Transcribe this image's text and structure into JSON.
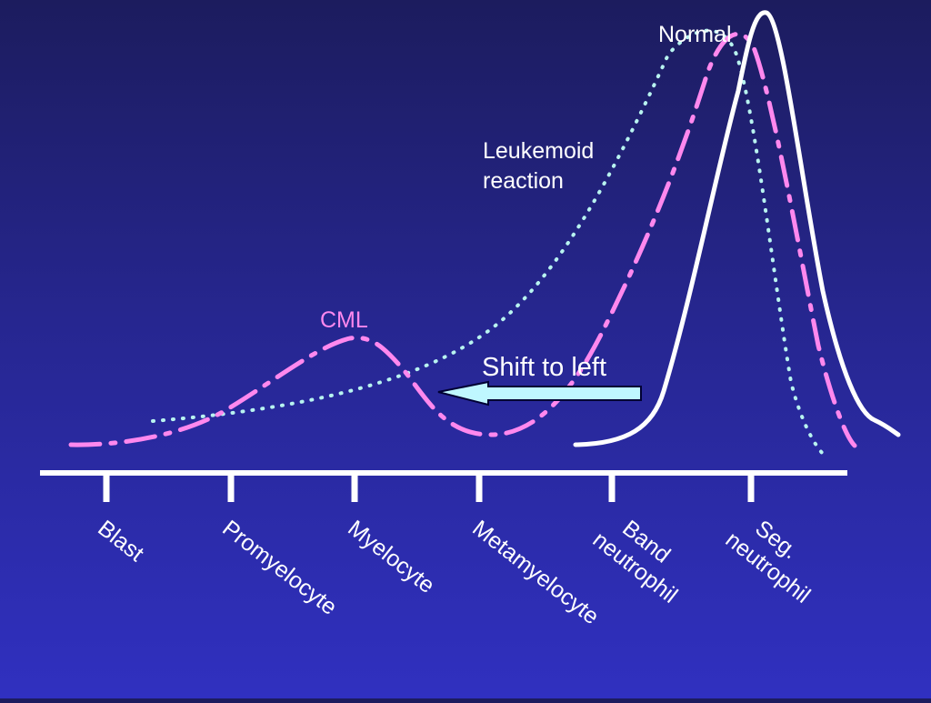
{
  "diagram": {
    "colors": {
      "normal": "#ffffff",
      "cml": "#ff88ee",
      "leukemoid": "#b8f4f0",
      "arrow_fill": "#bff7ff",
      "axis": "#ffffff",
      "label": "#ffffff"
    },
    "labels": {
      "normal": "Normal",
      "leukemoid_line1": "Leukemoid",
      "leukemoid_line2": "reaction",
      "cml": "CML",
      "shift": "Shift to left"
    },
    "categories": [
      {
        "line1": "Blast",
        "line2": ""
      },
      {
        "line1": "Promyelocyte",
        "line2": ""
      },
      {
        "line1": "Myelocyte",
        "line2": ""
      },
      {
        "line1": "Metamyelocyte",
        "line2": ""
      },
      {
        "line1": "Band",
        "line2": "neutrophil"
      },
      {
        "line1": "Seg.",
        "line2": "neutrophil"
      }
    ]
  }
}
